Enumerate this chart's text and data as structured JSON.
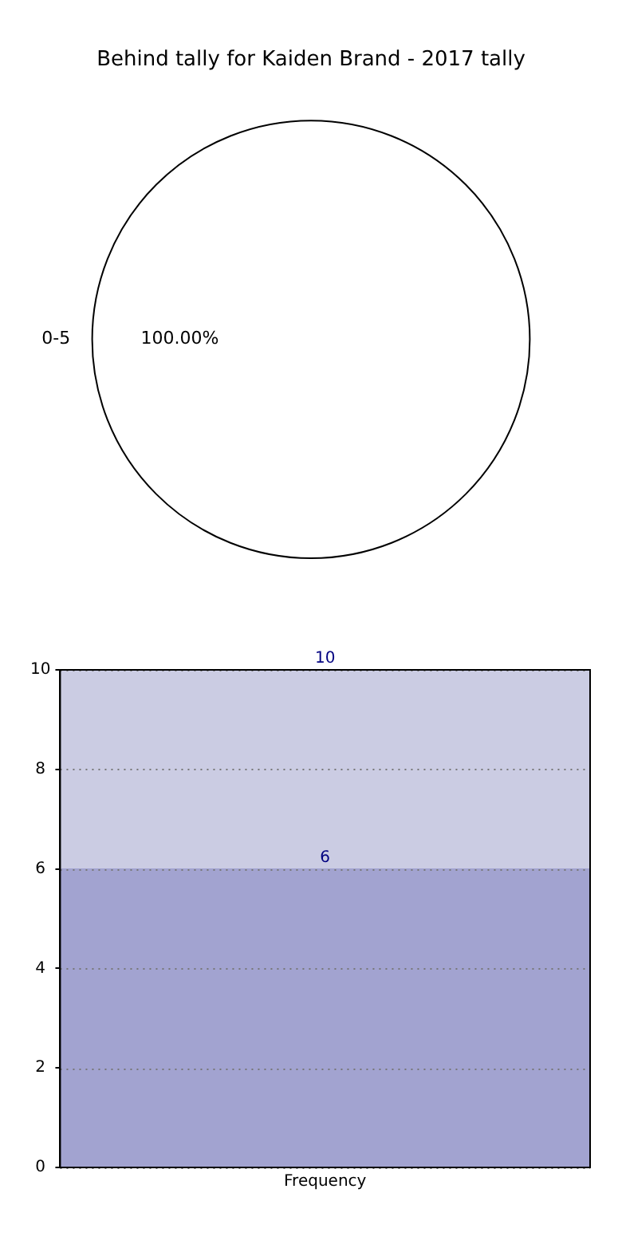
{
  "chart_data": [
    {
      "type": "pie",
      "title": "Behind tally for Kaiden Brand - 2017 tally",
      "categories": [
        "0-5"
      ],
      "values": [
        100
      ],
      "colors": [
        "#ffffff"
      ],
      "value_labels": [
        "100.00%"
      ],
      "legend": false
    },
    {
      "type": "bar",
      "categories": [
        "Frequency"
      ],
      "series": [
        {
          "color": "#a2a3d0",
          "values": [
            6
          ],
          "value_labels": [
            "6"
          ]
        },
        {
          "color": "#cbcce3",
          "values": [
            4
          ],
          "value_labels": [
            null
          ]
        }
      ],
      "stacked": true,
      "totals": [
        "10"
      ],
      "ylim": [
        0,
        10
      ],
      "yticks": [
        0,
        2,
        4,
        6,
        8,
        10
      ],
      "grid": "y",
      "legend": false
    }
  ]
}
